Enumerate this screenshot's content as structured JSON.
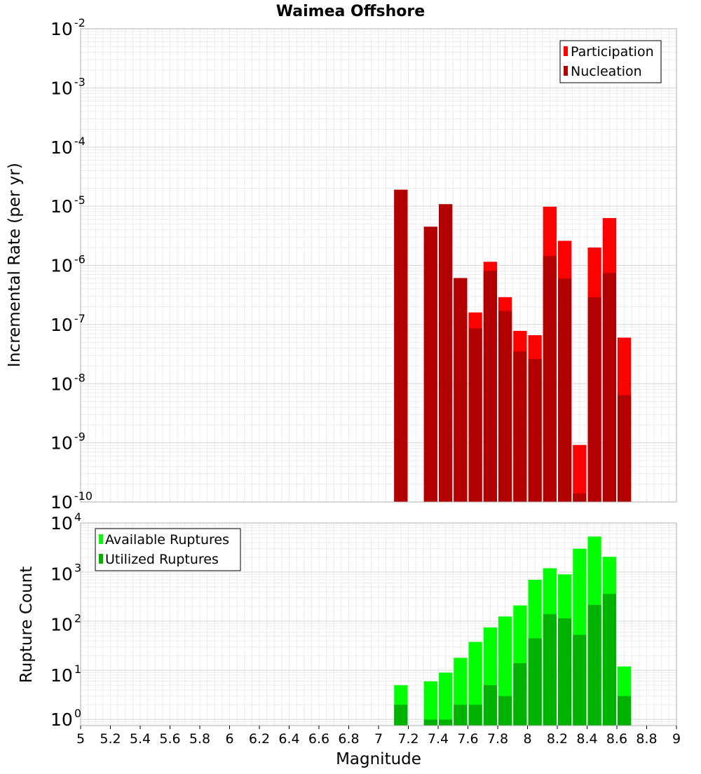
{
  "chart_data": [
    {
      "type": "bar",
      "title": "Waimea Offshore",
      "xlabel": "",
      "ylabel": "Incremental Rate (per yr)",
      "y_scale": "log",
      "ylim": [
        1e-10,
        0.01
      ],
      "xlim": [
        5,
        9
      ],
      "grid": true,
      "legend_position": "top-right",
      "x": [
        7.15,
        7.35,
        7.45,
        7.55,
        7.65,
        7.75,
        7.85,
        7.95,
        8.05,
        8.15,
        8.25,
        8.35,
        8.45,
        8.55,
        8.65
      ],
      "series": [
        {
          "name": "Participation",
          "color": "#ff0000",
          "values": [
            1.9e-05,
            4.5e-06,
            1.08e-05,
            6.1e-07,
            1.6e-07,
            1.15e-06,
            2.9e-07,
            7.8e-08,
            6.6e-08,
            9.8e-06,
            2.6e-06,
            9.2e-10,
            2e-06,
            6.3e-06,
            6e-08
          ]
        },
        {
          "name": "Nucleation",
          "color": "#b20000",
          "values": [
            1.9e-05,
            4.5e-06,
            1.08e-05,
            6.1e-07,
            8.6e-08,
            8.1e-07,
            1.7e-07,
            3.5e-08,
            2.6e-08,
            1.45e-06,
            6e-07,
            1.4e-10,
            2.9e-07,
            7.4e-07,
            6.4e-09
          ]
        }
      ]
    },
    {
      "type": "bar",
      "title": "",
      "xlabel": "Magnitude",
      "ylabel": "Rupture Count",
      "y_scale": "log",
      "ylim": [
        0.75,
        10000
      ],
      "xlim": [
        5,
        9
      ],
      "grid": true,
      "legend_position": "top-left",
      "x": [
        7.15,
        7.35,
        7.45,
        7.55,
        7.65,
        7.75,
        7.85,
        7.95,
        8.05,
        8.15,
        8.25,
        8.35,
        8.45,
        8.55,
        8.65
      ],
      "series": [
        {
          "name": "Available Ruptures",
          "color": "#00ff00",
          "values": [
            5,
            6,
            9,
            18,
            38,
            75,
            125,
            210,
            700,
            1200,
            900,
            3000,
            5300,
            2050,
            12
          ]
        },
        {
          "name": "Utilized Ruptures",
          "color": "#00b200",
          "values": [
            2,
            1,
            1,
            2,
            2,
            5,
            3,
            14,
            45,
            140,
            115,
            53,
            215,
            360,
            3
          ]
        }
      ]
    }
  ],
  "x_ticks": [
    "5",
    "5.2",
    "5.4",
    "5.6",
    "5.8",
    "6",
    "6.2",
    "6.4",
    "6.6",
    "6.8",
    "7",
    "7.2",
    "7.4",
    "7.6",
    "7.8",
    "8",
    "8.2",
    "8.4",
    "8.6",
    "8.8",
    "9"
  ],
  "top_y_ticks": [
    {
      "base": "10",
      "exp": "-2"
    },
    {
      "base": "10",
      "exp": "-3"
    },
    {
      "base": "10",
      "exp": "-4"
    },
    {
      "base": "10",
      "exp": "-5"
    },
    {
      "base": "10",
      "exp": "-6"
    },
    {
      "base": "10",
      "exp": "-7"
    },
    {
      "base": "10",
      "exp": "-8"
    },
    {
      "base": "10",
      "exp": "-9"
    },
    {
      "base": "10",
      "exp": "-10"
    }
  ],
  "bottom_y_ticks": [
    {
      "base": "10",
      "exp": "4"
    },
    {
      "base": "10",
      "exp": "3"
    },
    {
      "base": "10",
      "exp": "2"
    },
    {
      "base": "10",
      "exp": "1"
    },
    {
      "base": "10",
      "exp": "0"
    }
  ]
}
